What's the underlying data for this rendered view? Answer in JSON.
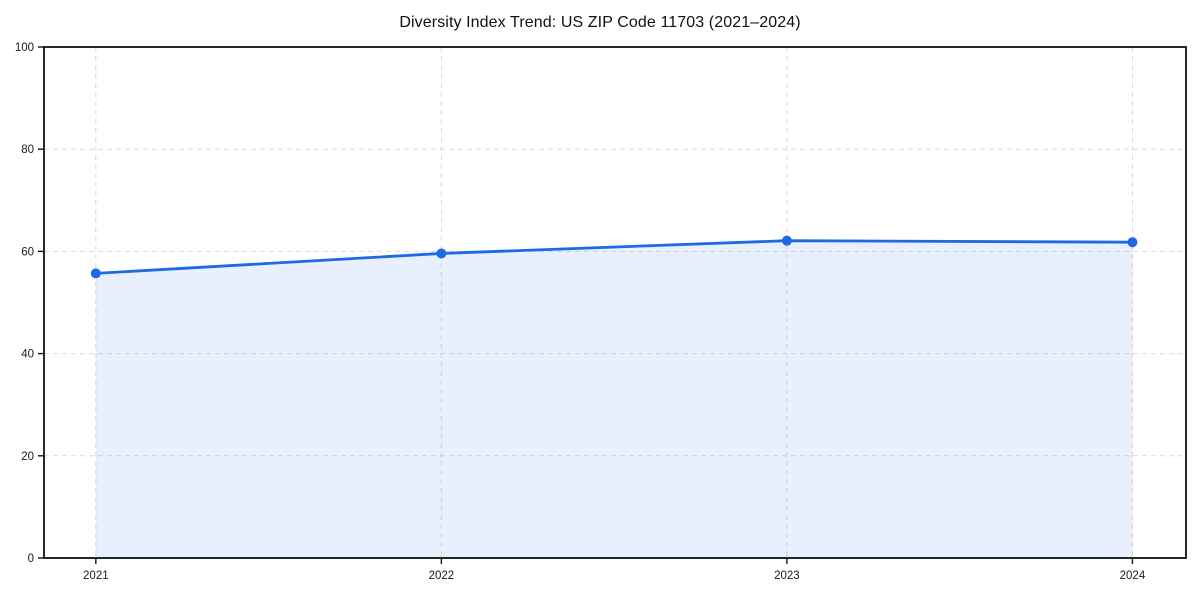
{
  "colors": {
    "line": "#1f6ae4",
    "marker": "#1f6ae4",
    "fill": "rgba(31,111,235,0.10)",
    "grid": "#d9d9d9",
    "axis": "#111111",
    "tick_label": "#1a1a1a",
    "background": "#ffffff"
  },
  "chart_data": {
    "type": "area",
    "title": "Diversity Index Trend: US ZIP Code 11703 (2021–2024)",
    "x": [
      2021,
      2022,
      2023,
      2024
    ],
    "xticks": [
      "2021",
      "2022",
      "2023",
      "2024"
    ],
    "series": [
      {
        "name": "Diversity Index",
        "values": [
          55.7,
          59.6,
          62.1,
          61.8
        ]
      }
    ],
    "xlabel": "",
    "ylabel": "",
    "yticks": [
      0,
      20,
      40,
      60,
      80,
      100
    ],
    "ylim": [
      0,
      100
    ],
    "xlim": [
      2020.85,
      2024.155
    ],
    "grid": true,
    "grid_style": "dashed",
    "legend": "none",
    "marker": "circle"
  }
}
